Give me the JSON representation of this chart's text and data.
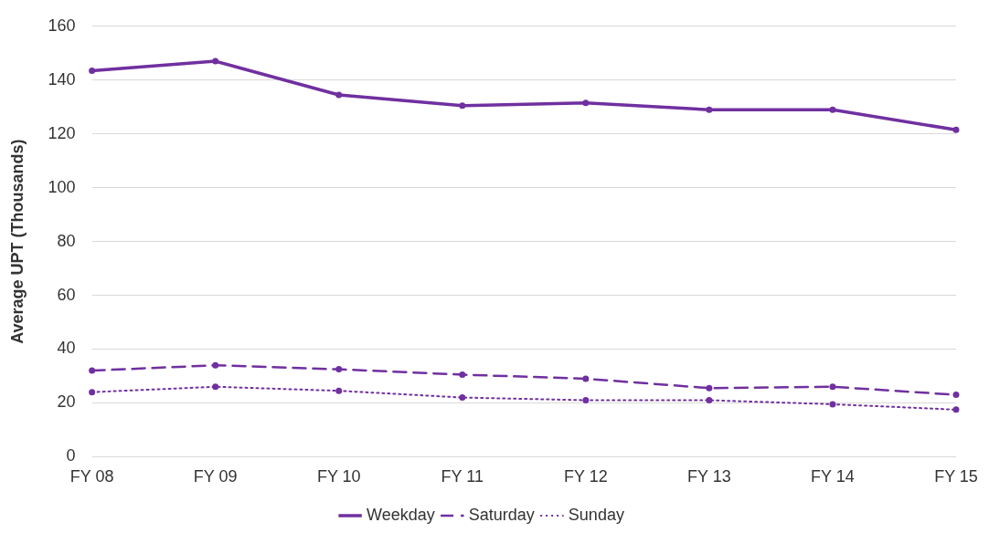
{
  "chart_data": {
    "type": "line",
    "ylabel": "Average UPT (Thousands)",
    "categories": [
      "FY 08",
      "FY 09",
      "FY 10",
      "FY 11",
      "FY 12",
      "FY 13",
      "FY 14",
      "FY 15"
    ],
    "series": [
      {
        "name": "Weekday",
        "color": "#7030a0",
        "line_style": "solid",
        "values": [
          143.5,
          147,
          134.5,
          130.5,
          131.5,
          129,
          129,
          121.5
        ]
      },
      {
        "name": "Saturday",
        "color": "#7030a0",
        "line_style": "dashed",
        "values": [
          32,
          34,
          32.5,
          30.5,
          29,
          25.5,
          26,
          23
        ]
      },
      {
        "name": "Sunday",
        "color": "#7030a0",
        "line_style": "dotted",
        "values": [
          24,
          26,
          24.5,
          22,
          21,
          21,
          19.5,
          17.5
        ]
      }
    ],
    "ylim": [
      0,
      160
    ],
    "yticks": [
      0,
      20,
      40,
      60,
      80,
      100,
      120,
      140,
      160
    ],
    "grid": "y",
    "legend": "bottom",
    "marker": "circle"
  }
}
